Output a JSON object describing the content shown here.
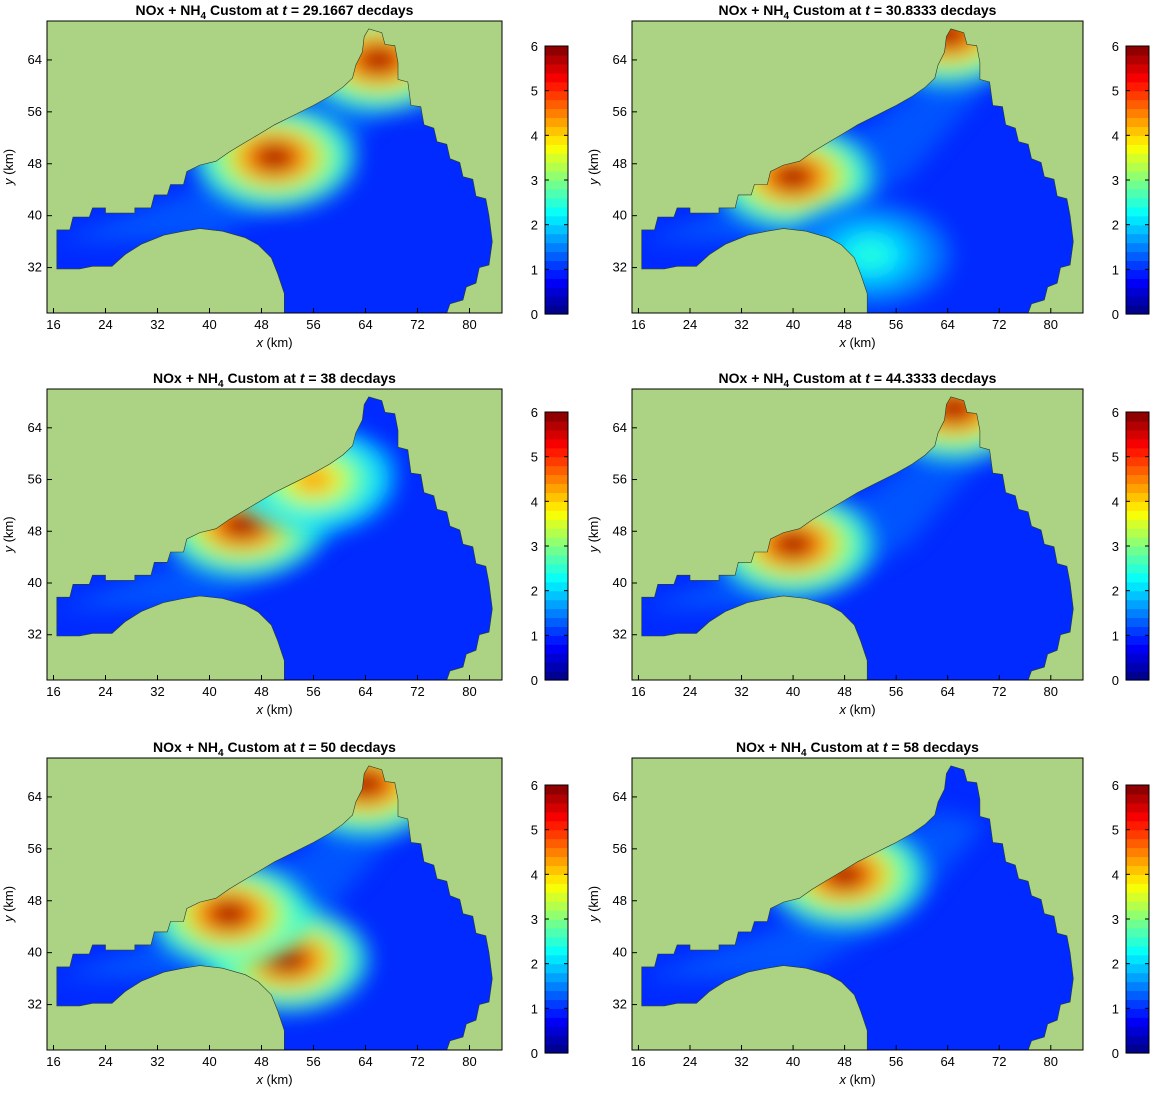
{
  "figure": {
    "panels": [
      {
        "title_prefix": "NOx + NH",
        "title_sub": "4",
        "title_mid": " Custom at ",
        "title_var": "t",
        "title_suffix": " = 29.1667 decdays"
      },
      {
        "title_prefix": "NOx + NH",
        "title_sub": "4",
        "title_mid": " Custom at ",
        "title_var": "t",
        "title_suffix": " = 30.8333 decdays"
      },
      {
        "title_prefix": "NOx + NH",
        "title_sub": "4",
        "title_mid": " Custom at ",
        "title_var": "t",
        "title_suffix": " = 38 decdays"
      },
      {
        "title_prefix": "NOx + NH",
        "title_sub": "4",
        "title_mid": " Custom at ",
        "title_var": "t",
        "title_suffix": " = 44.3333 decdays"
      },
      {
        "title_prefix": "NOx + NH",
        "title_sub": "4",
        "title_mid": " Custom at ",
        "title_var": "t",
        "title_suffix": " = 50 decdays"
      },
      {
        "title_prefix": "NOx + NH",
        "title_sub": "4",
        "title_mid": " Custom at ",
        "title_var": "t",
        "title_suffix": " = 58 decdays"
      }
    ],
    "xlabel_var": "x",
    "xlabel_unit": " (km)",
    "ylabel_var": "y",
    "ylabel_unit": " (km)",
    "land_color": "#acd384",
    "colormap": "jet"
  },
  "chart_data": [
    {
      "type": "heatmap",
      "time_decdays": 29.1667,
      "xlim": [
        15,
        85
      ],
      "ylim": [
        25,
        70
      ],
      "x_ticks": [
        16,
        24,
        32,
        40,
        48,
        56,
        64,
        72,
        80
      ],
      "y_ticks": [
        32,
        40,
        48,
        56,
        64
      ],
      "colorbar_range": [
        0,
        6
      ],
      "colorbar_ticks": [
        0,
        1,
        2,
        3,
        4,
        5,
        6
      ],
      "hotspots": [
        {
          "x": 50,
          "y": 49,
          "value": 6
        },
        {
          "x": 66,
          "y": 64,
          "value": 6
        }
      ]
    },
    {
      "type": "heatmap",
      "time_decdays": 30.8333,
      "xlim": [
        15,
        85
      ],
      "ylim": [
        25,
        70
      ],
      "x_ticks": [
        16,
        24,
        32,
        40,
        48,
        56,
        64,
        72,
        80
      ],
      "y_ticks": [
        32,
        40,
        48,
        56,
        64
      ],
      "colorbar_range": [
        0,
        6
      ],
      "colorbar_ticks": [
        0,
        1,
        2,
        3,
        4,
        5,
        6
      ],
      "hotspots": [
        {
          "x": 40,
          "y": 46,
          "value": 6
        },
        {
          "x": 52,
          "y": 34,
          "value": 2.5
        },
        {
          "x": 64,
          "y": 68,
          "value": 6
        }
      ]
    },
    {
      "type": "heatmap",
      "time_decdays": 38,
      "xlim": [
        15,
        85
      ],
      "ylim": [
        25,
        70
      ],
      "x_ticks": [
        16,
        24,
        32,
        40,
        48,
        56,
        64,
        72,
        80
      ],
      "y_ticks": [
        32,
        40,
        48,
        56,
        64
      ],
      "colorbar_range": [
        0,
        6
      ],
      "colorbar_ticks": [
        0,
        1,
        2,
        3,
        4,
        5,
        6
      ],
      "hotspots": [
        {
          "x": 45,
          "y": 49,
          "value": 6
        },
        {
          "x": 56,
          "y": 56,
          "value": 4.5
        }
      ]
    },
    {
      "type": "heatmap",
      "time_decdays": 44.3333,
      "xlim": [
        15,
        85
      ],
      "ylim": [
        25,
        70
      ],
      "x_ticks": [
        16,
        24,
        32,
        40,
        48,
        56,
        64,
        72,
        80
      ],
      "y_ticks": [
        32,
        40,
        48,
        56,
        64
      ],
      "colorbar_range": [
        0,
        6
      ],
      "colorbar_ticks": [
        0,
        1,
        2,
        3,
        4,
        5,
        6
      ],
      "hotspots": [
        {
          "x": 40,
          "y": 46,
          "value": 6
        },
        {
          "x": 65,
          "y": 67,
          "value": 6
        }
      ]
    },
    {
      "type": "heatmap",
      "time_decdays": 50,
      "xlim": [
        15,
        85
      ],
      "ylim": [
        25,
        70
      ],
      "x_ticks": [
        16,
        24,
        32,
        40,
        48,
        56,
        64,
        72,
        80
      ],
      "y_ticks": [
        32,
        40,
        48,
        56,
        64
      ],
      "colorbar_range": [
        0,
        6
      ],
      "colorbar_ticks": [
        0,
        1,
        2,
        3,
        4,
        5,
        6
      ],
      "hotspots": [
        {
          "x": 52,
          "y": 39,
          "value": 6
        },
        {
          "x": 43,
          "y": 46,
          "value": 6
        },
        {
          "x": 64,
          "y": 66,
          "value": 6
        }
      ]
    },
    {
      "type": "heatmap",
      "time_decdays": 58,
      "xlim": [
        15,
        85
      ],
      "ylim": [
        25,
        70
      ],
      "x_ticks": [
        16,
        24,
        32,
        40,
        48,
        56,
        64,
        72,
        80
      ],
      "y_ticks": [
        32,
        40,
        48,
        56,
        64
      ],
      "colorbar_range": [
        0,
        6
      ],
      "colorbar_ticks": [
        0,
        1,
        2,
        3,
        4,
        5,
        6
      ],
      "hotspots": [
        {
          "x": 48,
          "y": 52,
          "value": 6
        }
      ]
    }
  ]
}
